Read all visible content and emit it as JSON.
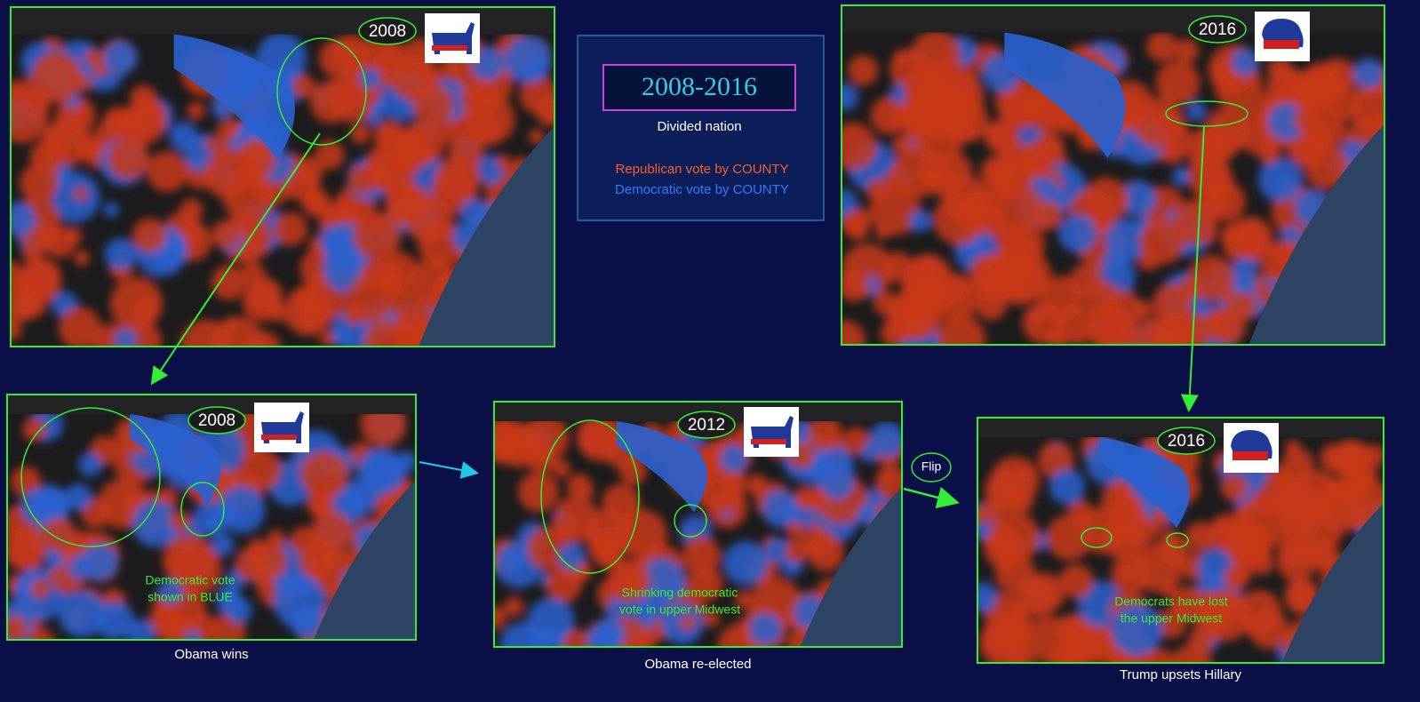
{
  "title": "2008-2016",
  "subtitle": "Divided nation",
  "legend": [
    "Republican vote by COUNTY",
    "Democratic vote by COUNTY"
  ],
  "top_maps": [
    {
      "year": "2008"
    },
    {
      "year": "2016"
    }
  ],
  "panels": [
    {
      "year": "2008",
      "note": [
        "Democratic vote",
        "shown in BLUE"
      ],
      "caption": "Obama wins"
    },
    {
      "year": "2012",
      "note": [
        "Shrinking democratic",
        "vote in upper Midwest"
      ],
      "caption": "Obama re-elected"
    },
    {
      "year": "2016",
      "note": [
        "Democrats have lost",
        "the upper Midwest"
      ],
      "caption": "Trump upsets Hillary"
    }
  ],
  "flip": "Flip"
}
